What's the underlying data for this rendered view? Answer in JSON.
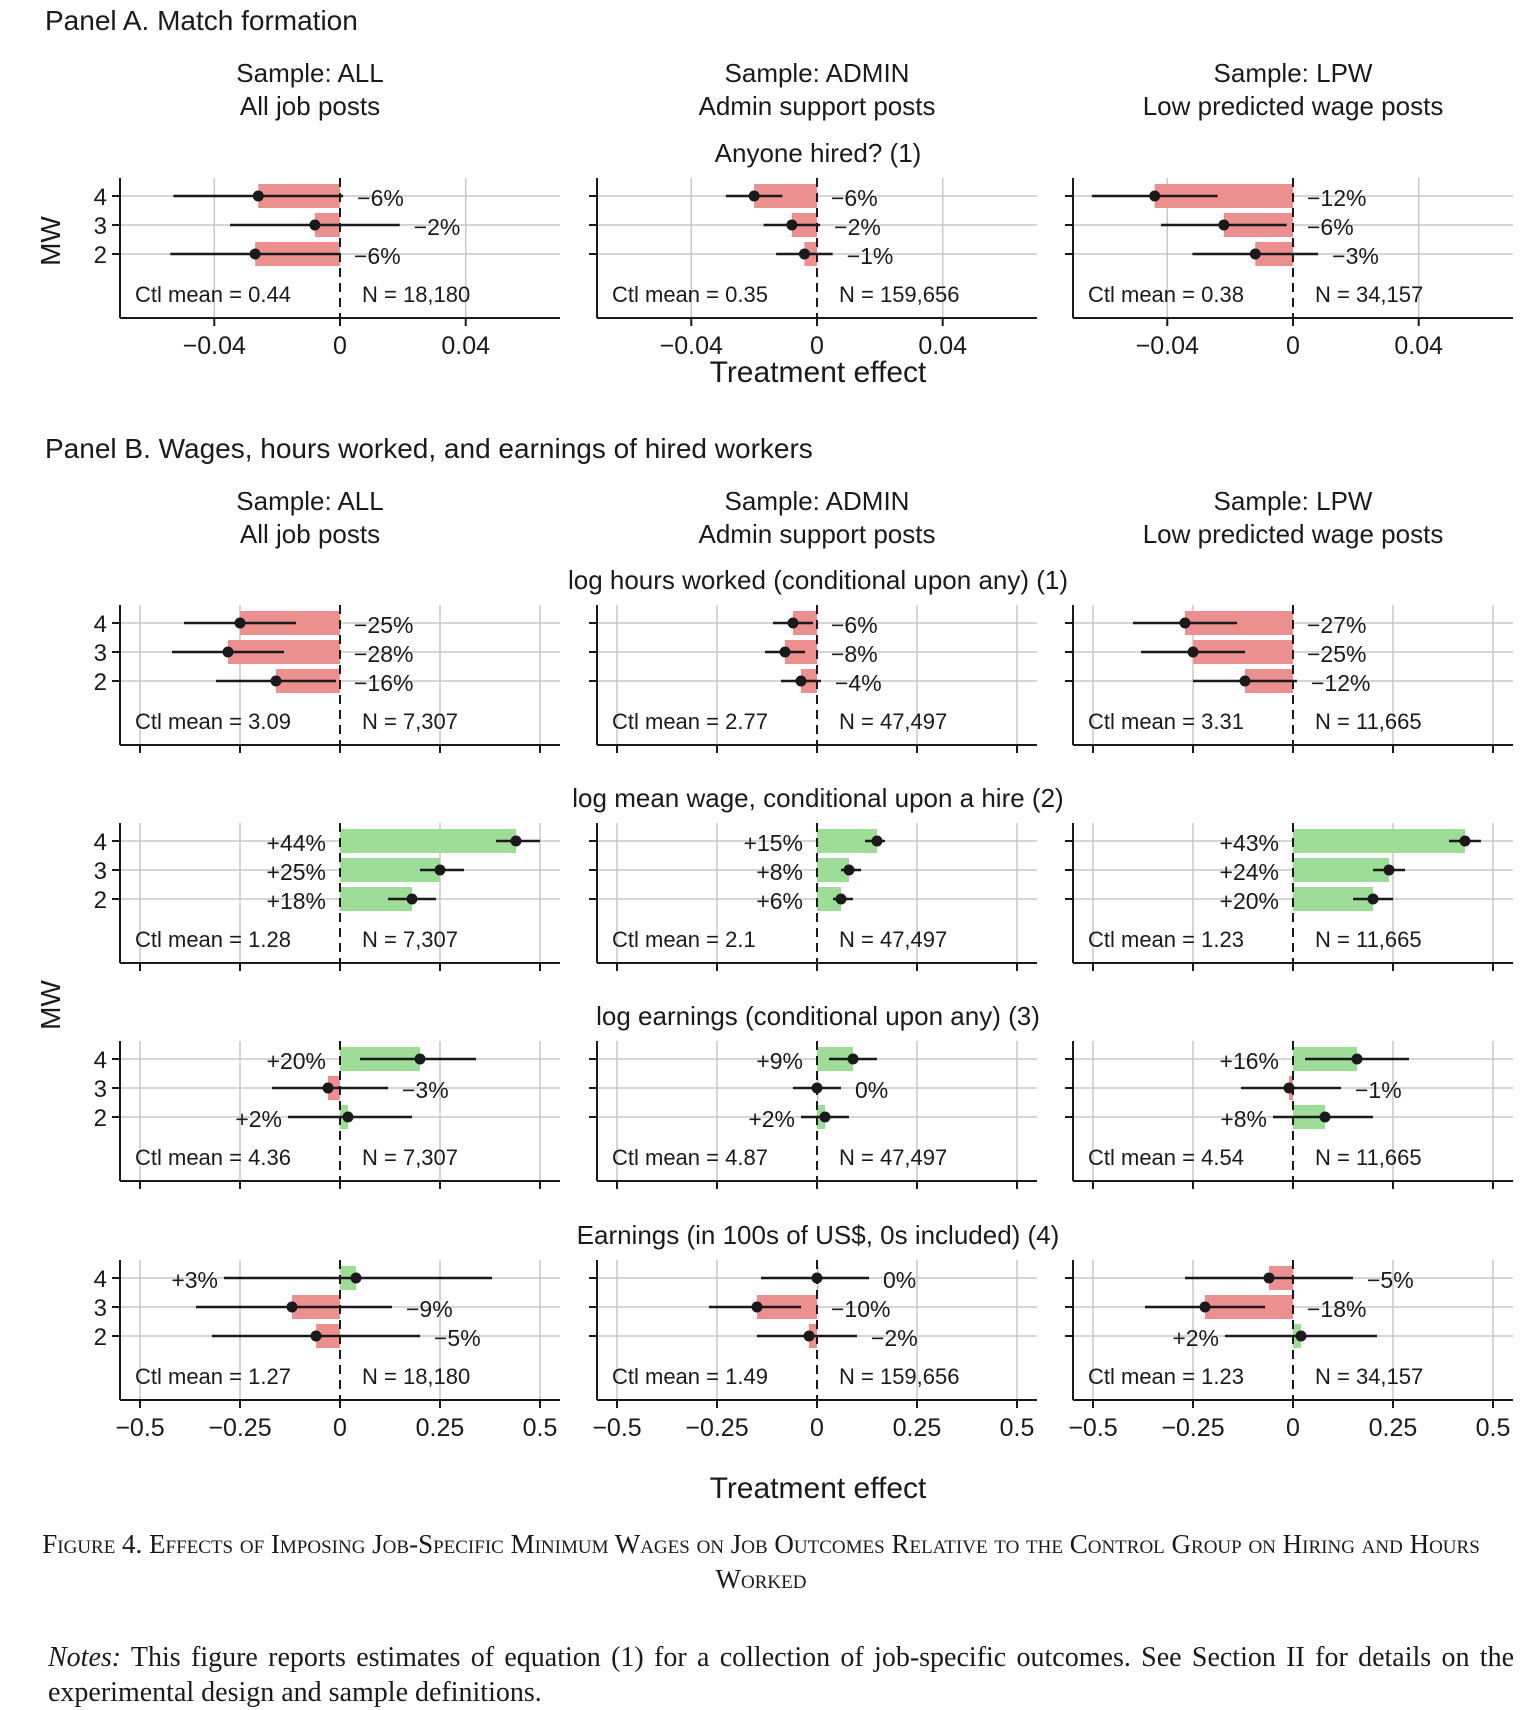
{
  "colors": {
    "negative_bar": "#ec8f8f",
    "positive_bar": "#9ddd97",
    "grid": "#c8c8c8",
    "point": "#1a1a1a"
  },
  "ylabel": "MW",
  "xlabel": "Treatment effect",
  "caption": "Figure 4. Effects of Imposing Job-Specific Minimum Wages on Job Outcomes Relative to the Control Group on Hiring and Hours Worked",
  "notes": {
    "label": "Notes:",
    "text": " This figure reports estimates of equation (1) for a collection of job-specific outcomes. See Section II for details on the experimental design and sample definitions."
  },
  "column_headers": [
    {
      "line1": "Sample: ALL",
      "line2": "All job posts"
    },
    {
      "line1": "Sample: ADMIN",
      "line2": "Admin support posts"
    },
    {
      "line1": "Sample: LPW",
      "line2": "Low predicted wage posts"
    }
  ],
  "panels": [
    {
      "title": "Panel A. Match formation",
      "xlim": [
        -0.07,
        0.07
      ],
      "xticks": [
        -0.04,
        0,
        0.04
      ],
      "xtick_labels": [
        "−0.04",
        "0",
        "0.04"
      ]
    },
    {
      "title": "Panel B. Wages, hours worked, and earnings of hired workers",
      "xlim": [
        -0.55,
        0.55
      ],
      "xticks": [
        -0.5,
        -0.25,
        0,
        0.25,
        0.5
      ],
      "xtick_labels": [
        "−0.5",
        "−0.25",
        "0",
        "0.25",
        "0.5"
      ]
    }
  ],
  "chart_data": {
    "type": "bar",
    "orientation": "horizontal",
    "categories": [
      "4",
      "3",
      "2"
    ],
    "rows": [
      {
        "panel": 0,
        "title": "Anyone hired? (1)",
        "plots": [
          {
            "ctl_mean": "Ctl mean = 0.44",
            "n": "N = 18,180",
            "points": [
              {
                "mw": "4",
                "est": -0.026,
                "ci": [
                  -0.053,
                  0.001
                ],
                "label": "−6%"
              },
              {
                "mw": "3",
                "est": -0.008,
                "ci": [
                  -0.035,
                  0.019
                ],
                "label": "−2%"
              },
              {
                "mw": "2",
                "est": -0.027,
                "ci": [
                  -0.054,
                  0.0
                ],
                "label": "−6%"
              }
            ]
          },
          {
            "ctl_mean": "Ctl mean = 0.35",
            "n": "N = 159,656",
            "points": [
              {
                "mw": "4",
                "est": -0.02,
                "ci": [
                  -0.029,
                  -0.011
                ],
                "label": "−6%"
              },
              {
                "mw": "3",
                "est": -0.008,
                "ci": [
                  -0.017,
                  0.001
                ],
                "label": "−2%"
              },
              {
                "mw": "2",
                "est": -0.004,
                "ci": [
                  -0.013,
                  0.005
                ],
                "label": "−1%"
              }
            ]
          },
          {
            "ctl_mean": "Ctl mean = 0.38",
            "n": "N = 34,157",
            "points": [
              {
                "mw": "4",
                "est": -0.044,
                "ci": [
                  -0.064,
                  -0.024
                ],
                "label": "−12%"
              },
              {
                "mw": "3",
                "est": -0.022,
                "ci": [
                  -0.042,
                  -0.002
                ],
                "label": "−6%"
              },
              {
                "mw": "2",
                "est": -0.012,
                "ci": [
                  -0.032,
                  0.008
                ],
                "label": "−3%"
              }
            ]
          }
        ]
      },
      {
        "panel": 1,
        "title": "log hours worked (conditional upon any) (1)",
        "plots": [
          {
            "ctl_mean": "Ctl mean = 3.09",
            "n": "N = 7,307",
            "points": [
              {
                "mw": "4",
                "est": -0.25,
                "ci": [
                  -0.39,
                  -0.11
                ],
                "label": "−25%"
              },
              {
                "mw": "3",
                "est": -0.28,
                "ci": [
                  -0.42,
                  -0.14
                ],
                "label": "−28%"
              },
              {
                "mw": "2",
                "est": -0.16,
                "ci": [
                  -0.31,
                  -0.01
                ],
                "label": "−16%"
              }
            ]
          },
          {
            "ctl_mean": "Ctl mean = 2.77",
            "n": "N = 47,497",
            "points": [
              {
                "mw": "4",
                "est": -0.06,
                "ci": [
                  -0.11,
                  -0.01
                ],
                "label": "−6%"
              },
              {
                "mw": "3",
                "est": -0.08,
                "ci": [
                  -0.13,
                  -0.03
                ],
                "label": "−8%"
              },
              {
                "mw": "2",
                "est": -0.04,
                "ci": [
                  -0.09,
                  0.01
                ],
                "label": "−4%"
              }
            ]
          },
          {
            "ctl_mean": "Ctl mean = 3.31",
            "n": "N = 11,665",
            "points": [
              {
                "mw": "4",
                "est": -0.27,
                "ci": [
                  -0.4,
                  -0.14
                ],
                "label": "−27%"
              },
              {
                "mw": "3",
                "est": -0.25,
                "ci": [
                  -0.38,
                  -0.12
                ],
                "label": "−25%"
              },
              {
                "mw": "2",
                "est": -0.12,
                "ci": [
                  -0.25,
                  0.01
                ],
                "label": "−12%"
              }
            ]
          }
        ]
      },
      {
        "panel": 1,
        "title": "log mean wage, conditional upon a hire (2)",
        "plots": [
          {
            "ctl_mean": "Ctl mean = 1.28",
            "n": "N = 7,307",
            "points": [
              {
                "mw": "4",
                "est": 0.44,
                "ci": [
                  0.39,
                  0.5
                ],
                "label": "+44%"
              },
              {
                "mw": "3",
                "est": 0.25,
                "ci": [
                  0.2,
                  0.31
                ],
                "label": "+25%"
              },
              {
                "mw": "2",
                "est": 0.18,
                "ci": [
                  0.12,
                  0.24
                ],
                "label": "+18%"
              }
            ]
          },
          {
            "ctl_mean": "Ctl mean = 2.1",
            "n": "N = 47,497",
            "points": [
              {
                "mw": "4",
                "est": 0.15,
                "ci": [
                  0.12,
                  0.17
                ],
                "label": "+15%"
              },
              {
                "mw": "3",
                "est": 0.08,
                "ci": [
                  0.06,
                  0.11
                ],
                "label": "+8%"
              },
              {
                "mw": "2",
                "est": 0.06,
                "ci": [
                  0.04,
                  0.09
                ],
                "label": "+6%"
              }
            ]
          },
          {
            "ctl_mean": "Ctl mean = 1.23",
            "n": "N = 11,665",
            "points": [
              {
                "mw": "4",
                "est": 0.43,
                "ci": [
                  0.39,
                  0.47
                ],
                "label": "+43%"
              },
              {
                "mw": "3",
                "est": 0.24,
                "ci": [
                  0.2,
                  0.28
                ],
                "label": "+24%"
              },
              {
                "mw": "2",
                "est": 0.2,
                "ci": [
                  0.15,
                  0.25
                ],
                "label": "+20%"
              }
            ]
          }
        ]
      },
      {
        "panel": 1,
        "title": "log earnings (conditional upon any) (3)",
        "plots": [
          {
            "ctl_mean": "Ctl mean = 4.36",
            "n": "N = 7,307",
            "points": [
              {
                "mw": "4",
                "est": 0.2,
                "ci": [
                  0.05,
                  0.34
                ],
                "label": "+20%"
              },
              {
                "mw": "3",
                "est": -0.03,
                "ci": [
                  -0.17,
                  0.12
                ],
                "label": "−3%"
              },
              {
                "mw": "2",
                "est": 0.02,
                "ci": [
                  -0.13,
                  0.18
                ],
                "label": "+2%"
              }
            ]
          },
          {
            "ctl_mean": "Ctl mean = 4.87",
            "n": "N = 47,497",
            "points": [
              {
                "mw": "4",
                "est": 0.09,
                "ci": [
                  0.03,
                  0.15
                ],
                "label": "+9%"
              },
              {
                "mw": "3",
                "est": 0.0,
                "ci": [
                  -0.06,
                  0.06
                ],
                "label": "0%"
              },
              {
                "mw": "2",
                "est": 0.02,
                "ci": [
                  -0.04,
                  0.08
                ],
                "label": "+2%"
              }
            ]
          },
          {
            "ctl_mean": "Ctl mean = 4.54",
            "n": "N = 11,665",
            "points": [
              {
                "mw": "4",
                "est": 0.16,
                "ci": [
                  0.03,
                  0.29
                ],
                "label": "+16%"
              },
              {
                "mw": "3",
                "est": -0.01,
                "ci": [
                  -0.13,
                  0.12
                ],
                "label": "−1%"
              },
              {
                "mw": "2",
                "est": 0.08,
                "ci": [
                  -0.05,
                  0.2
                ],
                "label": "+8%"
              }
            ]
          }
        ]
      },
      {
        "panel": 1,
        "title": "Earnings (in 100s of US$, 0s included) (4)",
        "plots": [
          {
            "ctl_mean": "Ctl mean = 1.27",
            "n": "N = 18,180",
            "points": [
              {
                "mw": "4",
                "est": 0.04,
                "ci": [
                  -0.29,
                  0.38
                ],
                "label": "+3%"
              },
              {
                "mw": "3",
                "est": -0.12,
                "ci": [
                  -0.36,
                  0.13
                ],
                "label": "−9%"
              },
              {
                "mw": "2",
                "est": -0.06,
                "ci": [
                  -0.32,
                  0.2
                ],
                "label": "−5%"
              }
            ]
          },
          {
            "ctl_mean": "Ctl mean = 1.49",
            "n": "N = 159,656",
            "points": [
              {
                "mw": "4",
                "est": 0.0,
                "ci": [
                  -0.14,
                  0.13
                ],
                "label": "0%"
              },
              {
                "mw": "3",
                "est": -0.15,
                "ci": [
                  -0.27,
                  -0.04
                ],
                "label": "−10%"
              },
              {
                "mw": "2",
                "est": -0.02,
                "ci": [
                  -0.15,
                  0.1
                ],
                "label": "−2%"
              }
            ]
          },
          {
            "ctl_mean": "Ctl mean = 1.23",
            "n": "N = 34,157",
            "points": [
              {
                "mw": "4",
                "est": -0.06,
                "ci": [
                  -0.27,
                  0.15
                ],
                "label": "−5%"
              },
              {
                "mw": "3",
                "est": -0.22,
                "ci": [
                  -0.37,
                  -0.07
                ],
                "label": "−18%"
              },
              {
                "mw": "2",
                "est": 0.02,
                "ci": [
                  -0.17,
                  0.21
                ],
                "label": "+2%"
              }
            ]
          }
        ]
      }
    ]
  }
}
